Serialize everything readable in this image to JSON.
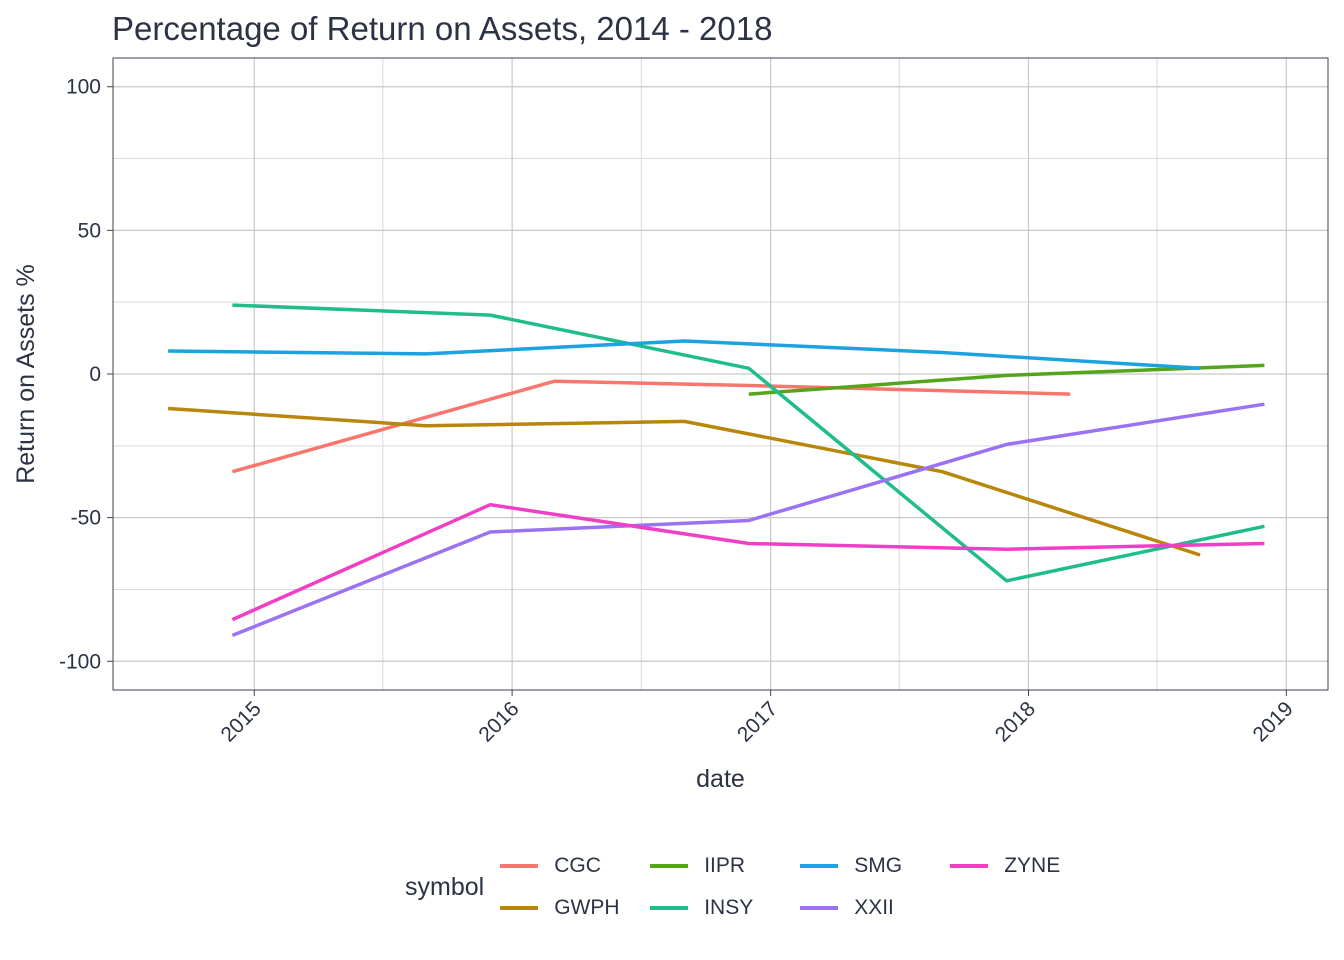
{
  "chart_data": {
    "type": "line",
    "title": "Percentage of Return on Assets, 2014 - 2018",
    "xlabel": "date",
    "ylabel": "Return on Assets %",
    "x_ticks": [
      "2015",
      "2016",
      "2017",
      "2018",
      "2019"
    ],
    "y_ticks": [
      "100",
      "50",
      "0",
      "-50",
      "-100"
    ],
    "xlim": [
      "2014-06-15",
      "2019-03-01"
    ],
    "ylim": [
      -110,
      110
    ],
    "grid": true,
    "legend": {
      "title": "symbol",
      "position": "bottom"
    },
    "series": [
      {
        "name": "CGC",
        "color": "#f8766d",
        "points": [
          [
            "2014-12-01",
            -34
          ],
          [
            "2016-03-01",
            -2.5
          ],
          [
            "2016-12-01",
            -4
          ],
          [
            "2018-03-01",
            -7
          ]
        ]
      },
      {
        "name": "GWPH",
        "color": "#b8860b",
        "points": [
          [
            "2014-09-01",
            -12
          ],
          [
            "2015-09-01",
            -18
          ],
          [
            "2016-09-01",
            -16.5
          ],
          [
            "2017-09-01",
            -34
          ],
          [
            "2018-09-01",
            -63
          ]
        ]
      },
      {
        "name": "IIPR",
        "color": "#53a51b",
        "points": [
          [
            "2016-12-01",
            -7
          ],
          [
            "2017-12-01",
            -0.5
          ],
          [
            "2018-12-01",
            3
          ]
        ]
      },
      {
        "name": "INSY",
        "color": "#1fbc8c",
        "points": [
          [
            "2014-12-01",
            24
          ],
          [
            "2015-12-01",
            20.5
          ],
          [
            "2016-12-01",
            2
          ],
          [
            "2017-12-01",
            -72
          ],
          [
            "2018-12-01",
            -53
          ]
        ]
      },
      {
        "name": "SMG",
        "color": "#1aa3e0",
        "points": [
          [
            "2014-09-01",
            8
          ],
          [
            "2015-09-01",
            7
          ],
          [
            "2016-09-01",
            11.5
          ],
          [
            "2017-09-01",
            7.5
          ],
          [
            "2018-09-01",
            2
          ]
        ]
      },
      {
        "name": "XXII",
        "color": "#9b72f2",
        "points": [
          [
            "2014-12-01",
            -91
          ],
          [
            "2015-12-01",
            -55
          ],
          [
            "2016-12-01",
            -51
          ],
          [
            "2017-12-01",
            -24.5
          ],
          [
            "2018-12-01",
            -10.5
          ]
        ]
      },
      {
        "name": "ZYNE",
        "color": "#f03fc4",
        "points": [
          [
            "2014-12-01",
            -85.5
          ],
          [
            "2015-12-01",
            -45.5
          ],
          [
            "2016-12-01",
            -59
          ],
          [
            "2017-12-01",
            -61
          ],
          [
            "2018-12-01",
            -59
          ]
        ]
      }
    ]
  }
}
